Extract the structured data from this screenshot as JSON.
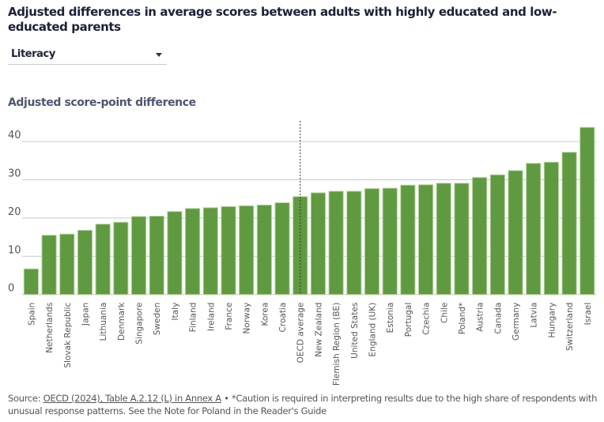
{
  "title": "Adjusted differences in average scores between adults with highly educated and low-educated parents",
  "dropdown": {
    "selected": "Literacy",
    "icon": "caret-down-icon"
  },
  "source": {
    "prefix": "Source: ",
    "link_text": "OECD (2024), Table A.2.12 (L) in Annex A",
    "note": " • *Caution is required in interpreting results due to the high share of respondents with unusual response patterns. See the Note for Poland in the Reader's Guide"
  },
  "colors": {
    "bar": "#5f9a40",
    "bar_outline": "#b5d4a1",
    "grid": "#c4c9d1",
    "reference_line": "#333333"
  },
  "chart_data": {
    "type": "bar",
    "title": "Adjusted differences in average scores between adults with highly educated and low-educated parents",
    "xlabel": "",
    "ylabel": "Adjusted score-point difference",
    "ylim": [
      0,
      44
    ],
    "yticks": [
      0,
      10,
      20,
      30,
      40
    ],
    "grid": true,
    "reference_category": "OECD average",
    "categories": [
      "Spain",
      "Netherlands",
      "Slovak Republic",
      "Japan",
      "Lithuania",
      "Denmark",
      "Singapore",
      "Sweden",
      "Italy",
      "Finland",
      "Ireland",
      "France",
      "Norway",
      "Korea",
      "Croatia",
      "OECD average",
      "New Zealand",
      "Flemish Region (BE)",
      "United States",
      "England (UK)",
      "Estonia",
      "Portugal",
      "Czechia",
      "Chile",
      "Poland*",
      "Austria",
      "Canada",
      "Germany",
      "Latvia",
      "Hungary",
      "Switzerland",
      "Israel"
    ],
    "values": [
      6.7,
      15.5,
      15.8,
      16.8,
      18.4,
      18.9,
      20.4,
      20.5,
      21.7,
      22.5,
      22.7,
      23.0,
      23.2,
      23.4,
      24.0,
      25.6,
      26.6,
      27.0,
      27.0,
      27.7,
      27.8,
      28.6,
      28.7,
      29.1,
      29.1,
      30.6,
      31.3,
      32.4,
      34.3,
      34.6,
      37.2,
      43.7
    ]
  }
}
